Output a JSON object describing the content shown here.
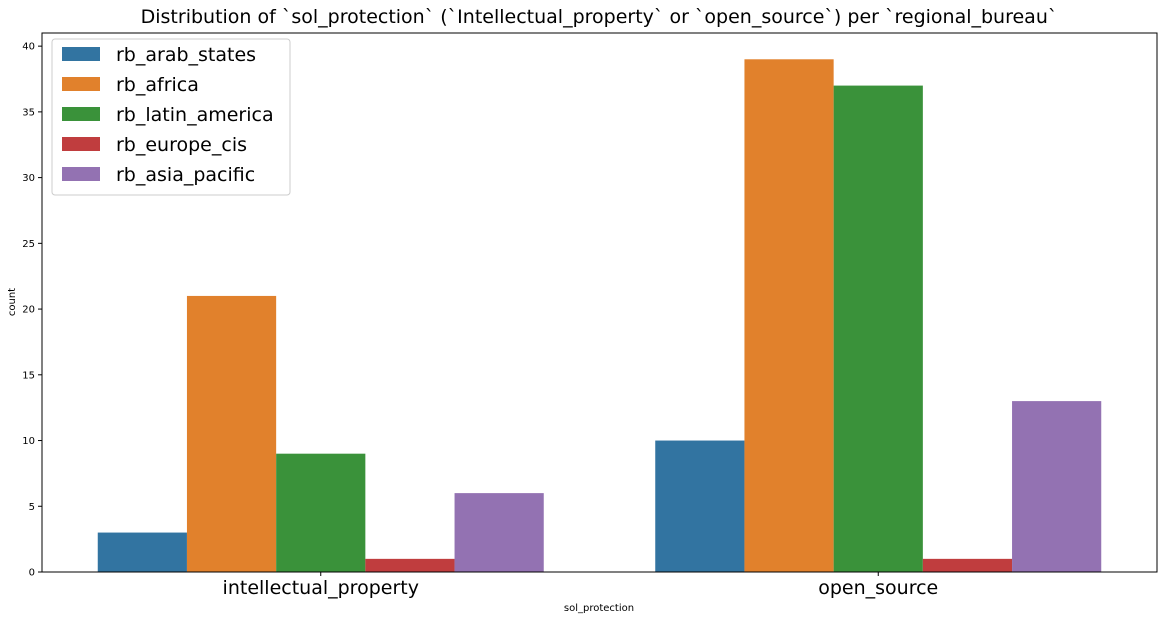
{
  "chart_data": {
    "type": "bar",
    "title": "Distribution of `sol_protection` (`Intellectual_property` or `open_source`) per `regional_bureau`",
    "xlabel": "sol_protection",
    "ylabel": "count",
    "categories": [
      "intellectual_property",
      "open_source"
    ],
    "series": [
      {
        "name": "rb_arab_states",
        "color": "#3274a1",
        "values": [
          3,
          10
        ]
      },
      {
        "name": "rb_africa",
        "color": "#e1812c",
        "values": [
          21,
          39
        ]
      },
      {
        "name": "rb_latin_america",
        "color": "#3a923a",
        "values": [
          9,
          37
        ]
      },
      {
        "name": "rb_europe_cis",
        "color": "#c03d3e",
        "values": [
          1,
          1
        ]
      },
      {
        "name": "rb_asia_pacific",
        "color": "#9372b2",
        "values": [
          6,
          13
        ]
      }
    ],
    "ylim": [
      0,
      41
    ],
    "yticks": [
      0,
      5,
      10,
      15,
      20,
      25,
      30,
      35,
      40
    ],
    "grid": false,
    "legend": "top-left"
  }
}
